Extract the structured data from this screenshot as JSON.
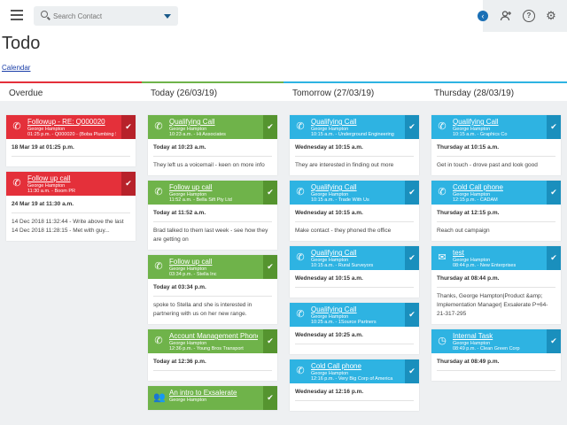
{
  "header": {
    "search_placeholder": "Search Contact",
    "menu_icon": "hamburger-menu-icon",
    "icons": [
      "chevron-left-icon",
      "add-user-icon",
      "help-icon",
      "gear-icon"
    ]
  },
  "page": {
    "title": "Todo",
    "calendar_link": "Calendar"
  },
  "colors": {
    "overdue": "#e4303a",
    "today": "#6fb34a",
    "upcoming": "#2eb3e2"
  },
  "columns": [
    {
      "title": "Overdue",
      "accent": "#e4303a",
      "cards": [
        {
          "color": "red",
          "icon": "phone-icon",
          "title": "Followup - RE: Q000020",
          "sub1": "George Hampton",
          "sub2": "01:25 p.m. - Q000020 - (Boba Plumbing S",
          "date": "18 Mar 19 at 01:25 p.m.",
          "note": ""
        },
        {
          "color": "red",
          "icon": "phone-icon",
          "title": "Follow up call",
          "sub1": "George Hampton",
          "sub2": "11:30 a.m. - Boom PR",
          "date": "24 Mar 19 at 11:30 a.m.",
          "note": "14 Dec 2018 11:32:44 - Write above the last\n14 Dec 2018 11:28:15 - Met with guy..."
        }
      ]
    },
    {
      "title": "Today (26/03/19)",
      "accent": "#6fb34a",
      "cards": [
        {
          "color": "green",
          "icon": "phone-icon",
          "title": "Qualifying Call",
          "sub1": "George Hampton",
          "sub2": "10:23 a.m. - Hi Associates",
          "date": "Today at 10:23 a.m.",
          "note": "They left us a voicemail - keen on more info"
        },
        {
          "color": "green",
          "icon": "phone-icon",
          "title": "Follow up call",
          "sub1": "George Hampton",
          "sub2": "11:52 a.m. - Bella Sift Pty Ltd",
          "date": "Today at 11:52 a.m.",
          "note": "Brad talked to them last week - see how they are getting on"
        },
        {
          "color": "green",
          "icon": "phone-icon",
          "title": "Follow up call",
          "sub1": "George Hampton",
          "sub2": "03:34 p.m. - Stella Inc",
          "date": "Today at 03:34 p.m.",
          "note": "spoke to Stella and she is interested in partnering with us on her new range."
        },
        {
          "color": "green",
          "icon": "phone-icon",
          "title": "Account Management Phone Ca",
          "sub1": "George Hampton",
          "sub2": "12:36 p.m. - Young Bros Transport",
          "date": "Today at 12:36 p.m.",
          "note": ""
        },
        {
          "color": "green",
          "icon": "people-icon",
          "title": "An intro to Exsalerate",
          "sub1": "George Hampton",
          "sub2": "",
          "date": "",
          "note": ""
        }
      ]
    },
    {
      "title": "Tomorrow (27/03/19)",
      "accent": "#2eb3e2",
      "cards": [
        {
          "color": "blue",
          "icon": "phone-icon",
          "title": "Qualifying Call",
          "sub1": "George Hampton",
          "sub2": "10:15 a.m. - Underground Engineering",
          "date": "Wednesday at 10:15 a.m.",
          "note": "They are interested in finding out more"
        },
        {
          "color": "blue",
          "icon": "phone-icon",
          "title": "Qualifying Call",
          "sub1": "George Hampton",
          "sub2": "10:15 a.m. - Trade With Us",
          "date": "Wednesday at 10:15 a.m.",
          "note": "Make contact - they phoned the office"
        },
        {
          "color": "blue",
          "icon": "phone-icon",
          "title": "Qualifying Call",
          "sub1": "George Hampton",
          "sub2": "10:15 a.m. - Rural Surveyors",
          "date": "Wednesday at 10:15 a.m.",
          "note": ""
        },
        {
          "color": "blue",
          "icon": "phone-icon",
          "title": "Qualifying Call",
          "sub1": "George Hampton",
          "sub2": "10:25 a.m. - 1Source Partners",
          "date": "Wednesday at 10:25 a.m.",
          "note": ""
        },
        {
          "color": "blue",
          "icon": "phone-icon",
          "title": "Cold Call phone",
          "sub1": "George Hampton",
          "sub2": "12:16 p.m. - Very Big Corp of America",
          "date": "Wednesday at 12:16 p.m.",
          "note": ""
        }
      ]
    },
    {
      "title": "Thursday (28/03/19)",
      "accent": "#2eb3e2",
      "cards": [
        {
          "color": "blue",
          "icon": "phone-icon",
          "title": "Qualifying Call",
          "sub1": "George Hampton",
          "sub2": "10:15 a.m. - Graphics Co",
          "date": "Thursday at 10:15 a.m.",
          "note": "Get in touch - drove past and look good"
        },
        {
          "color": "blue",
          "icon": "phone-icon",
          "title": "Cold Call phone",
          "sub1": "George Hampton",
          "sub2": "12:15 p.m. - CADAM",
          "date": "Thursday at 12:15 p.m.",
          "note": "Reach out campaign"
        },
        {
          "color": "blue",
          "icon": "email-icon",
          "title": "test",
          "sub1": "George Hampton",
          "sub2": "08:44 p.m. - New Enterprises",
          "date": "Thursday at 08:44 p.m.",
          "note": "Thanks, George Hampton|Product &amp; Implementation Manager| Exsalerate P+64-21-317-295"
        },
        {
          "color": "blue",
          "icon": "clock-icon",
          "title": "Internal Task",
          "sub1": "George Hampton",
          "sub2": "08:49 p.m. - Clean Green Corp",
          "date": "Thursday at 08:49 p.m.",
          "note": ""
        }
      ]
    }
  ]
}
